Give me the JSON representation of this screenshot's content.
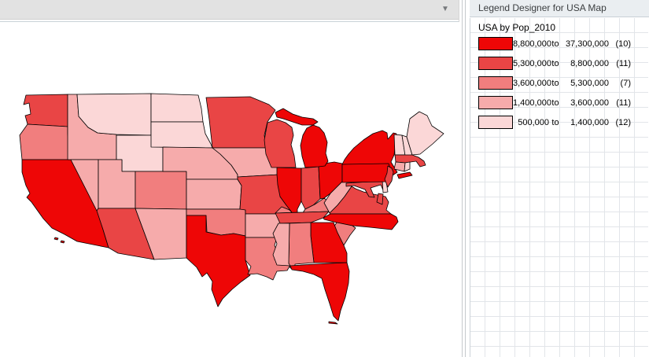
{
  "map_panel": {
    "dropdown_icon": "▼"
  },
  "legend_panel": {
    "header_title": "Legend Designer for USA Map",
    "legend_title": "USA by Pop_2010",
    "classes": [
      {
        "lower": "8,800,000",
        "to": "to",
        "upper": "37,300,000",
        "count": "(10)",
        "color": "#EE0606"
      },
      {
        "lower": "5,300,000",
        "to": "to",
        "upper": "8,800,000",
        "count": "(11)",
        "color": "#E94545"
      },
      {
        "lower": "3,600,000",
        "to": "to",
        "upper": "5,300,000",
        "count": "(7)",
        "color": "#F17E7E"
      },
      {
        "lower": "1,400,000",
        "to": "to",
        "upper": "3,600,000",
        "count": "(11)",
        "color": "#F6ABAB"
      },
      {
        "lower": "500,000",
        "to": "to",
        "upper": "1,400,000",
        "count": "(12)",
        "color": "#FBD7D7"
      }
    ]
  },
  "chart_data": {
    "type": "choropleth",
    "title": "USA by Pop_2010",
    "variable": "Pop_2010",
    "legend_position": "right",
    "classes": [
      {
        "range": "8,800,000 to 37,300,000",
        "count": 10,
        "color": "#EE0606"
      },
      {
        "range": "5,300,000 to 8,800,000",
        "count": 11,
        "color": "#E94545"
      },
      {
        "range": "3,600,000 to 5,300,000",
        "count": 7,
        "color": "#F17E7E"
      },
      {
        "range": "1,400,000 to 3,600,000",
        "count": 11,
        "color": "#F6ABAB"
      },
      {
        "range": "500,000 to 1,400,000",
        "count": 12,
        "color": "#FBD7D7"
      }
    ],
    "state_classes": {
      "CA": 1,
      "TX": 1,
      "NY": 1,
      "FL": 1,
      "IL": 1,
      "PA": 1,
      "OH": 1,
      "MI": 1,
      "GA": 1,
      "NC": 1,
      "NJ": 2,
      "VA": 2,
      "WA": 2,
      "MA": 2,
      "IN": 2,
      "AZ": 2,
      "TN": 2,
      "MO": 2,
      "MD": 2,
      "WI": 2,
      "MN": 2,
      "CO": 3,
      "AL": 3,
      "SC": 3,
      "LA": 3,
      "KY": 3,
      "OR": 3,
      "OK": 3,
      "CT": 4,
      "IA": 4,
      "MS": 4,
      "AR": 4,
      "KS": 4,
      "UT": 4,
      "NV": 4,
      "NM": 4,
      "WV": 4,
      "NE": 4,
      "ID": 4,
      "NH": 5,
      "ME": 5,
      "MT": 5,
      "RI": 5,
      "DE": 5,
      "SD": 5,
      "ND": 5,
      "VT": 5,
      "WY": 5
    }
  }
}
